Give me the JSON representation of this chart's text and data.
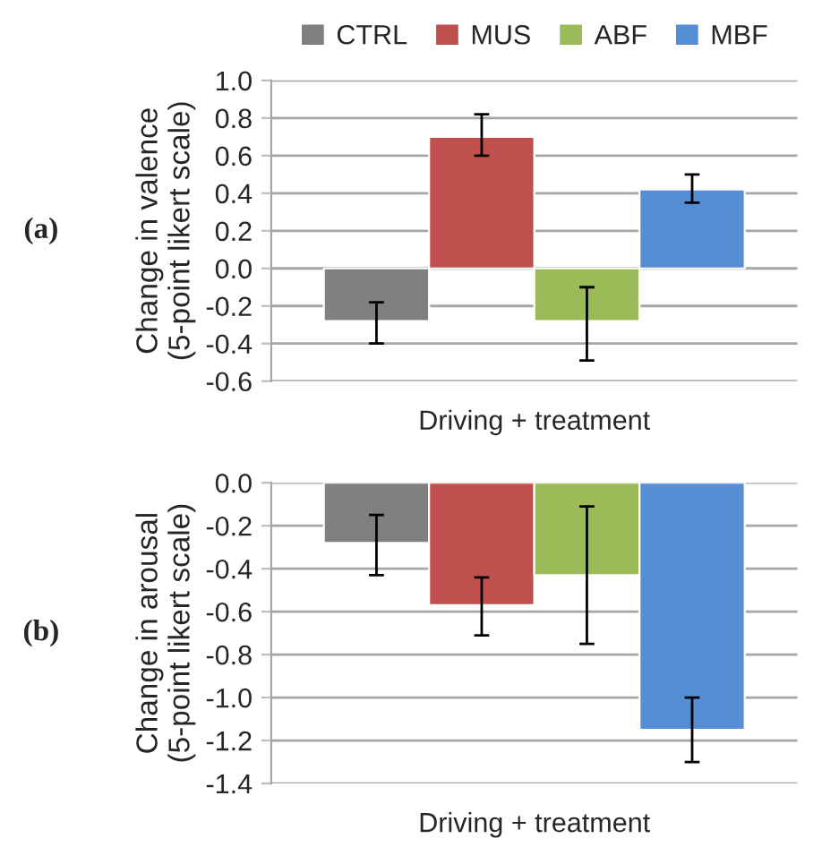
{
  "chart_data": [
    {
      "type": "bar",
      "ylabel": "Change in valence\n(5-point likert scale)",
      "xlabel": "Driving + treatment",
      "annotations": [
        "(a)"
      ],
      "categories": [
        null
      ],
      "ylim": [
        -0.6,
        1.0
      ],
      "yticks": [
        {
          "value": -0.6,
          "label": "-0.6"
        },
        {
          "value": -0.4,
          "label": "-0.4"
        },
        {
          "value": -0.2,
          "label": "-0.2"
        },
        {
          "value": 0.0,
          "label": "0.0"
        },
        {
          "value": 0.2,
          "label": "0.2"
        },
        {
          "value": 0.4,
          "label": "0.4"
        },
        {
          "value": 0.6,
          "label": "0.6"
        },
        {
          "value": 0.8,
          "label": "0.8"
        },
        {
          "value": 1.0,
          "label": "1.0"
        }
      ],
      "grid": "y",
      "legend": "top",
      "series": [
        {
          "name": "CTRL",
          "color": "#7f7f7f",
          "values": [
            -0.28
          ],
          "errors": [
            [
              -0.4,
              -0.18
            ]
          ]
        },
        {
          "name": "MUS",
          "color": "#c0504d",
          "values": [
            0.7
          ],
          "errors": [
            [
              0.6,
              0.82
            ]
          ]
        },
        {
          "name": "ABF",
          "color": "#9bbb59",
          "values": [
            -0.28
          ],
          "errors": [
            [
              -0.49,
              -0.1
            ]
          ]
        },
        {
          "name": "MBF",
          "color": "#558ed5",
          "values": [
            0.42
          ],
          "errors": [
            [
              0.35,
              0.5
            ]
          ]
        }
      ]
    },
    {
      "type": "bar",
      "ylabel": "Change in arousal\n(5-point likert scale)",
      "xlabel": "Driving + treatment",
      "annotations": [
        "(b)"
      ],
      "categories": [
        null
      ],
      "ylim": [
        -1.4,
        0.0
      ],
      "yticks": [
        {
          "value": -1.4,
          "label": "-1.4"
        },
        {
          "value": -1.2,
          "label": "-1.2"
        },
        {
          "value": -1.0,
          "label": "-1.0"
        },
        {
          "value": -0.8,
          "label": "-0.8"
        },
        {
          "value": -0.6,
          "label": "-0.6"
        },
        {
          "value": -0.4,
          "label": "-0.4"
        },
        {
          "value": -0.2,
          "label": "-0.2"
        },
        {
          "value": 0.0,
          "label": "0.0"
        }
      ],
      "grid": "y",
      "series": [
        {
          "color": "#7f7f7f",
          "values": [
            -0.28
          ],
          "errors": [
            [
              -0.43,
              -0.15
            ]
          ]
        },
        {
          "color": "#c0504d",
          "values": [
            -0.57
          ],
          "errors": [
            [
              -0.71,
              -0.44
            ]
          ]
        },
        {
          "color": "#9bbb59",
          "values": [
            -0.43
          ],
          "errors": [
            [
              -0.75,
              -0.11
            ]
          ]
        },
        {
          "color": "#558ed5",
          "values": [
            -1.15
          ],
          "errors": [
            [
              -1.3,
              -1.0
            ]
          ]
        }
      ]
    }
  ]
}
